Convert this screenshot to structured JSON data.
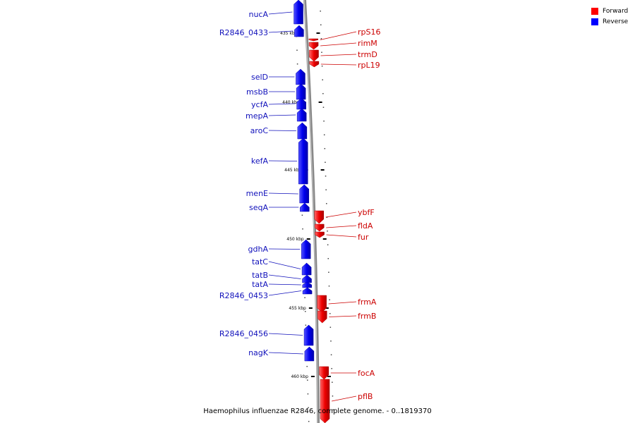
{
  "legend": {
    "forward": {
      "label": "Forward",
      "color": "#ff0000"
    },
    "reverse": {
      "label": "Reverse",
      "color": "#0000ff"
    }
  },
  "caption": "Haemophilus influenzae R2846, complete genome. - 0..1819370",
  "ticks": [
    {
      "label": "435 kbp"
    },
    {
      "label": "440 kbp"
    },
    {
      "label": "445 kbp"
    },
    {
      "label": "450 kbp"
    },
    {
      "label": "455 kbp"
    },
    {
      "label": "460 kbp"
    }
  ],
  "reverse_genes": [
    {
      "name": "nucA"
    },
    {
      "name": "R2846_0433"
    },
    {
      "name": "selD"
    },
    {
      "name": "msbB"
    },
    {
      "name": "ycfA"
    },
    {
      "name": "mepA"
    },
    {
      "name": "aroC"
    },
    {
      "name": "kefA"
    },
    {
      "name": "menE"
    },
    {
      "name": "seqA"
    },
    {
      "name": "gdhA"
    },
    {
      "name": "tatC"
    },
    {
      "name": "tatB"
    },
    {
      "name": "tatA"
    },
    {
      "name": "R2846_0453"
    },
    {
      "name": "R2846_0456"
    },
    {
      "name": "nagK"
    }
  ],
  "forward_genes": [
    {
      "name": "rpS16"
    },
    {
      "name": "rimM"
    },
    {
      "name": "trmD"
    },
    {
      "name": "rpL19"
    },
    {
      "name": "ybfF"
    },
    {
      "name": "fldA"
    },
    {
      "name": "fur"
    },
    {
      "name": "frmA"
    },
    {
      "name": "frmB"
    },
    {
      "name": "focA"
    },
    {
      "name": "pflB"
    }
  ]
}
